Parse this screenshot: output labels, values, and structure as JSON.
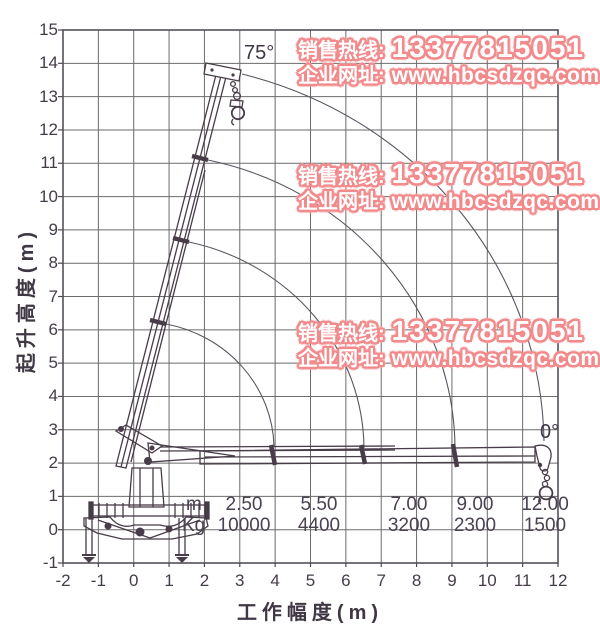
{
  "watermark": {
    "hotline_label": "销售热线:",
    "hotline_number": "13377815051",
    "website_label": "企业网址:",
    "website_url": "www.hbcsdzqc.com",
    "fill_color": "#ffffff",
    "outline_color": "#f28a8c"
  },
  "axes": {
    "y_title": "起升高度(m)",
    "x_title": "工作幅度(m)",
    "y_ticks": [
      "15",
      "14",
      "13",
      "12",
      "11",
      "10",
      "9",
      "8",
      "7",
      "6",
      "5",
      "4",
      "3",
      "2",
      "1",
      "0",
      "-1"
    ],
    "x_ticks": [
      "-2",
      "-1",
      "0",
      "1",
      "2",
      "3",
      "4",
      "5",
      "6",
      "7",
      "8",
      "9",
      "10",
      "11",
      "12"
    ]
  },
  "angles": {
    "max_label": "75°",
    "min_label": "0°"
  },
  "load_table": {
    "row1_label": "m",
    "row2_label": "Kg",
    "columns": [
      {
        "m": "2.50",
        "kg": "10000"
      },
      {
        "m": "5.50",
        "kg": "4400"
      },
      {
        "m": "7.00",
        "kg": "3200"
      },
      {
        "m": "9.00",
        "kg": "2300"
      },
      {
        "m": "12.00",
        "kg": "1500"
      }
    ]
  },
  "chart_data": {
    "type": "line",
    "title": "Truck crane working range and load chart",
    "xlabel": "工作幅度(m)",
    "ylabel": "起升高度(m)",
    "xlim": [
      -2,
      12
    ],
    "ylim": [
      -1,
      15
    ],
    "grid": true,
    "boom_angles_deg": {
      "max": 75,
      "min": 0
    },
    "load_points": {
      "radius_m": [
        2.5,
        5.5,
        7.0,
        9.0,
        12.0
      ],
      "capacity_kg": [
        10000,
        4400,
        3200,
        2300,
        1500
      ]
    },
    "envelope_arcs": [
      {
        "start": {
          "x": 2.9,
          "y": 13.7
        },
        "end": {
          "x": 11.5,
          "y": 2.6
        }
      },
      {
        "start": {
          "x": 2.0,
          "y": 11.1
        },
        "end": {
          "x": 9.1,
          "y": 2.5
        }
      },
      {
        "start": {
          "x": 1.5,
          "y": 8.7
        },
        "end": {
          "x": 6.5,
          "y": 2.4
        }
      },
      {
        "start": {
          "x": 0.9,
          "y": 6.2
        },
        "end": {
          "x": 4.0,
          "y": 2.5
        }
      }
    ]
  }
}
